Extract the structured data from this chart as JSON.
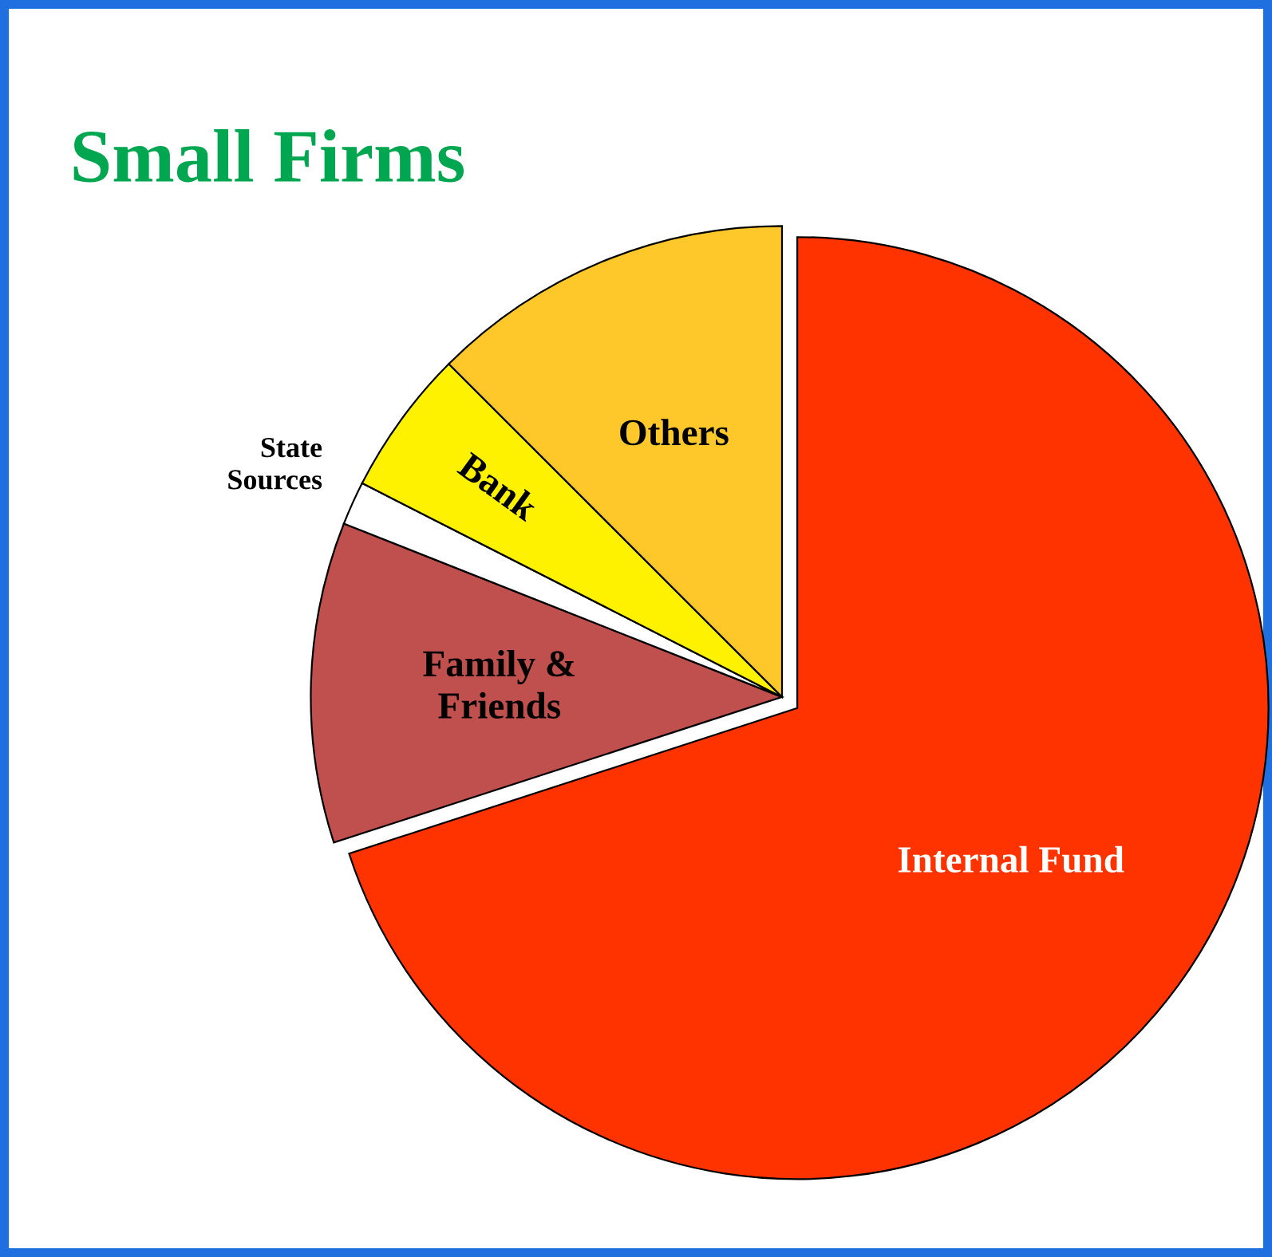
{
  "chart_data": {
    "type": "pie",
    "title": "Small Firms",
    "categories": [
      "Internal Fund",
      "Family & Friends",
      "State Sources",
      "Bank",
      "Others"
    ],
    "values": [
      70,
      11,
      1.5,
      5,
      12.5
    ],
    "colors": [
      "#ff3300",
      "#c0504d",
      "#ffffff",
      "#fff200",
      "#ffc82a"
    ]
  }
}
